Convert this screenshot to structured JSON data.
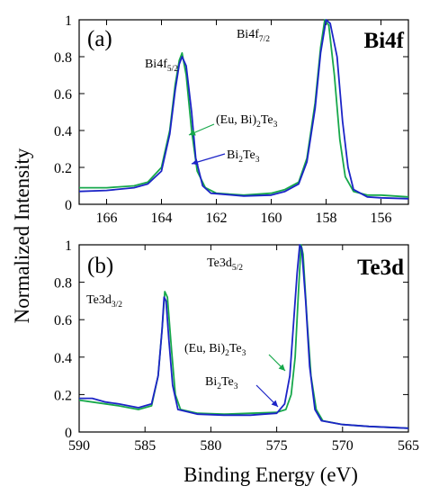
{
  "y_axis_label": "Normalized Intensity",
  "x_axis_label": "Binding Energy (eV)",
  "colors": {
    "eu_bi2te3": "#17a84b",
    "bi2te3": "#1c24c7"
  },
  "chart_data": [
    {
      "type": "line",
      "panel_label": "(a)",
      "element_label": "Bi4f",
      "xlim": [
        167,
        155
      ],
      "ylim": [
        0,
        1
      ],
      "x_ticks": [
        166,
        164,
        162,
        160,
        158,
        156
      ],
      "y_ticks": [
        0,
        0.2,
        0.4,
        0.6,
        0.8,
        1
      ],
      "peak_labels": [
        {
          "base": "Bi4f",
          "sub": "5/2",
          "x": 163.3,
          "y": 0.8
        },
        {
          "base": "Bi4f",
          "sub": "7/2",
          "x": 158.0,
          "y": 1.0
        }
      ],
      "series": [
        {
          "name": "(Eu, Bi)2Te3",
          "label_parts": [
            "(Eu, Bi)",
            "2",
            "Te",
            "3"
          ],
          "color": "#17a84b",
          "points": [
            [
              167,
              0.09
            ],
            [
              166,
              0.09
            ],
            [
              165,
              0.1
            ],
            [
              164.5,
              0.12
            ],
            [
              164,
              0.2
            ],
            [
              163.7,
              0.4
            ],
            [
              163.5,
              0.65
            ],
            [
              163.35,
              0.78
            ],
            [
              163.25,
              0.82
            ],
            [
              163.1,
              0.7
            ],
            [
              162.9,
              0.4
            ],
            [
              162.7,
              0.18
            ],
            [
              162.4,
              0.09
            ],
            [
              162,
              0.06
            ],
            [
              161,
              0.05
            ],
            [
              160,
              0.06
            ],
            [
              159.5,
              0.08
            ],
            [
              159,
              0.12
            ],
            [
              158.7,
              0.25
            ],
            [
              158.4,
              0.55
            ],
            [
              158.2,
              0.85
            ],
            [
              158.05,
              1.0
            ],
            [
              157.9,
              0.97
            ],
            [
              157.7,
              0.7
            ],
            [
              157.5,
              0.35
            ],
            [
              157.3,
              0.15
            ],
            [
              157,
              0.07
            ],
            [
              156.5,
              0.05
            ],
            [
              156,
              0.05
            ],
            [
              155,
              0.04
            ]
          ]
        },
        {
          "name": "Bi2Te3",
          "label_parts": [
            "Bi",
            "2",
            "Te",
            "3"
          ],
          "color": "#1c24c7",
          "points": [
            [
              167,
              0.07
            ],
            [
              166,
              0.075
            ],
            [
              165,
              0.09
            ],
            [
              164.5,
              0.11
            ],
            [
              164,
              0.18
            ],
            [
              163.7,
              0.38
            ],
            [
              163.5,
              0.62
            ],
            [
              163.35,
              0.76
            ],
            [
              163.25,
              0.8
            ],
            [
              163.1,
              0.75
            ],
            [
              162.9,
              0.5
            ],
            [
              162.75,
              0.25
            ],
            [
              162.5,
              0.1
            ],
            [
              162.2,
              0.06
            ],
            [
              161,
              0.045
            ],
            [
              160,
              0.05
            ],
            [
              159.5,
              0.07
            ],
            [
              159,
              0.11
            ],
            [
              158.7,
              0.23
            ],
            [
              158.4,
              0.52
            ],
            [
              158.2,
              0.82
            ],
            [
              158.0,
              1.0
            ],
            [
              157.85,
              0.98
            ],
            [
              157.6,
              0.8
            ],
            [
              157.4,
              0.45
            ],
            [
              157.2,
              0.2
            ],
            [
              157,
              0.08
            ],
            [
              156.5,
              0.04
            ],
            [
              156,
              0.035
            ],
            [
              155,
              0.03
            ]
          ]
        }
      ]
    },
    {
      "type": "line",
      "panel_label": "(b)",
      "element_label": "Te3d",
      "xlim": [
        590,
        565
      ],
      "ylim": [
        0,
        1
      ],
      "x_ticks": [
        590,
        585,
        580,
        575,
        570,
        565
      ],
      "y_ticks": [
        0,
        0.2,
        0.4,
        0.6,
        0.8,
        1
      ],
      "peak_labels": [
        {
          "base": "Te3d",
          "sub": "3/2",
          "x": 583.5,
          "y": 0.75
        },
        {
          "base": "Te3d",
          "sub": "5/2",
          "x": 573.0,
          "y": 1.0
        }
      ],
      "series": [
        {
          "name": "(Eu, Bi)2Te3",
          "label_parts": [
            "(Eu, Bi)",
            "2",
            "Te",
            "3"
          ],
          "color": "#17a84b",
          "points": [
            [
              590,
              0.17
            ],
            [
              589,
              0.16
            ],
            [
              587,
              0.14
            ],
            [
              585.5,
              0.12
            ],
            [
              584.5,
              0.14
            ],
            [
              584,
              0.3
            ],
            [
              583.7,
              0.55
            ],
            [
              583.5,
              0.75
            ],
            [
              583.3,
              0.72
            ],
            [
              583,
              0.45
            ],
            [
              582.7,
              0.2
            ],
            [
              582.3,
              0.12
            ],
            [
              581,
              0.1
            ],
            [
              579,
              0.095
            ],
            [
              577,
              0.1
            ],
            [
              575,
              0.105
            ],
            [
              574.3,
              0.12
            ],
            [
              573.9,
              0.2
            ],
            [
              573.6,
              0.4
            ],
            [
              573.35,
              0.75
            ],
            [
              573.15,
              1.0
            ],
            [
              573.0,
              0.95
            ],
            [
              572.7,
              0.6
            ],
            [
              572.4,
              0.3
            ],
            [
              572,
              0.12
            ],
            [
              571.5,
              0.06
            ],
            [
              570,
              0.04
            ],
            [
              568,
              0.03
            ],
            [
              565,
              0.02
            ]
          ]
        },
        {
          "name": "Bi2Te3",
          "label_parts": [
            "Bi",
            "2",
            "Te",
            "3"
          ],
          "color": "#1c24c7",
          "points": [
            [
              590,
              0.18
            ],
            [
              589,
              0.18
            ],
            [
              588,
              0.16
            ],
            [
              587,
              0.15
            ],
            [
              585.5,
              0.13
            ],
            [
              584.5,
              0.15
            ],
            [
              584,
              0.3
            ],
            [
              583.7,
              0.55
            ],
            [
              583.55,
              0.72
            ],
            [
              583.4,
              0.7
            ],
            [
              583.2,
              0.5
            ],
            [
              582.9,
              0.25
            ],
            [
              582.5,
              0.12
            ],
            [
              581,
              0.095
            ],
            [
              579,
              0.09
            ],
            [
              577,
              0.09
            ],
            [
              576,
              0.095
            ],
            [
              575,
              0.1
            ],
            [
              574.4,
              0.15
            ],
            [
              574,
              0.3
            ],
            [
              573.7,
              0.6
            ],
            [
              573.45,
              0.85
            ],
            [
              573.25,
              1.0
            ],
            [
              573.1,
              0.98
            ],
            [
              572.8,
              0.7
            ],
            [
              572.5,
              0.35
            ],
            [
              572.1,
              0.12
            ],
            [
              571.6,
              0.06
            ],
            [
              570,
              0.04
            ],
            [
              568,
              0.03
            ],
            [
              565,
              0.02
            ]
          ]
        }
      ]
    }
  ]
}
